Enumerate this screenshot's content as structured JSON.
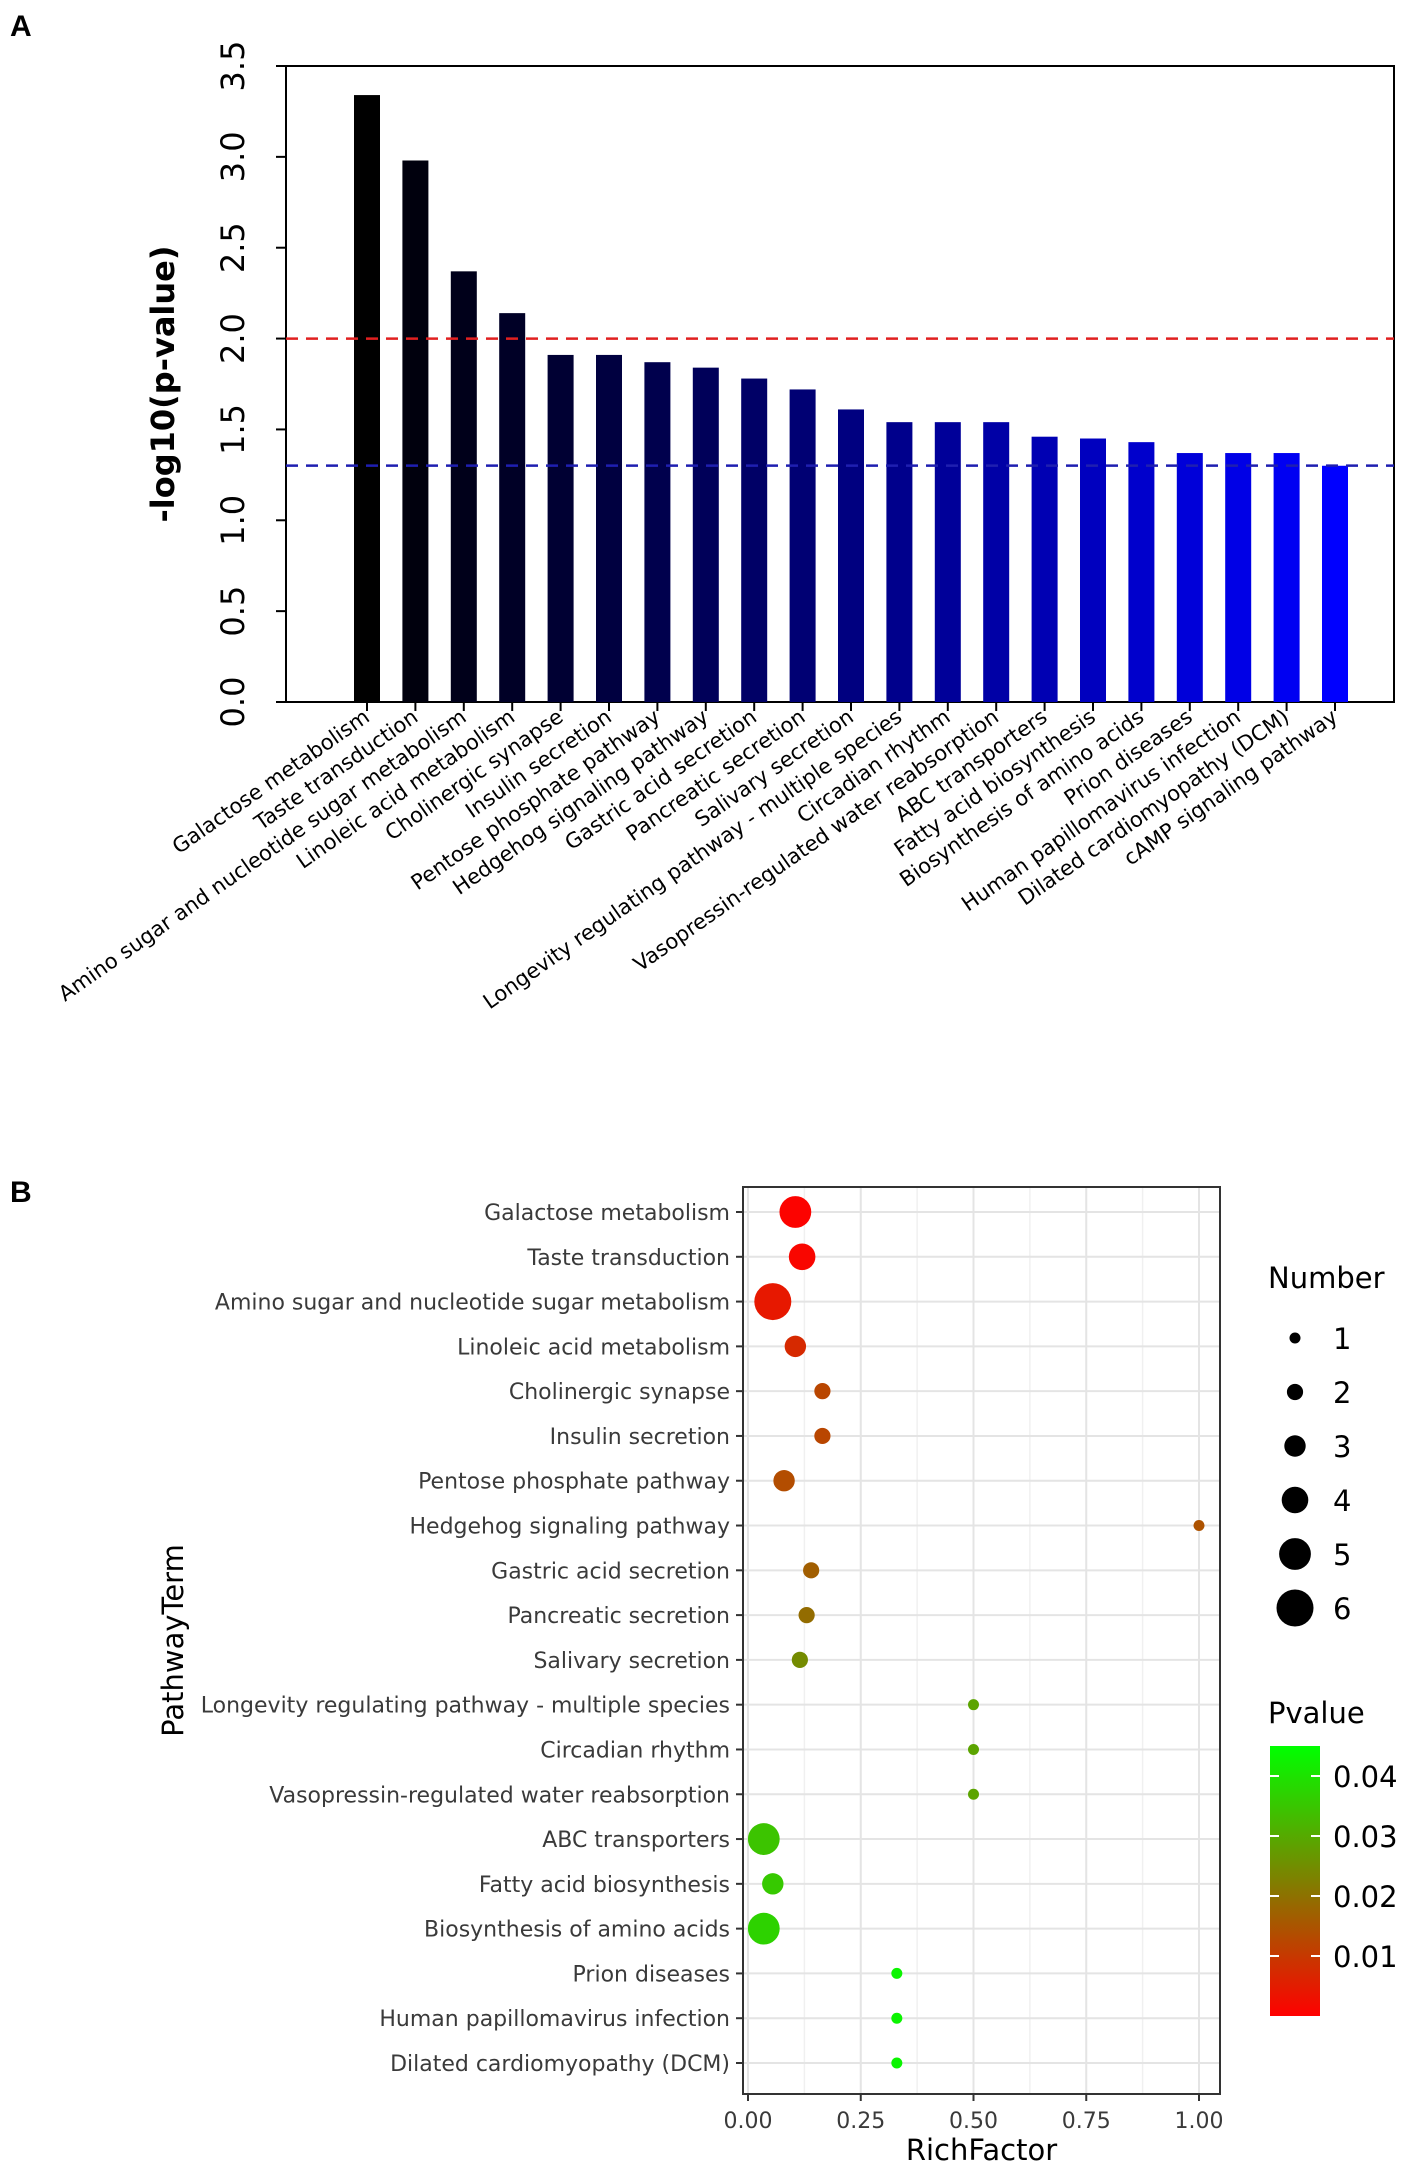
{
  "chart_data": [
    {
      "panel": "A",
      "type": "bar",
      "title": "",
      "xlabel": "",
      "ylabel": "-log10(p-value)",
      "ylim": [
        0,
        3.5
      ],
      "yticks": [
        "0.0",
        "0.5",
        "1.0",
        "1.5",
        "2.0",
        "2.5",
        "3.0",
        "3.5"
      ],
      "grid": false,
      "categories": [
        "Galactose metabolism",
        "Taste transduction",
        "Amino sugar and nucleotide sugar metabolism",
        "Linoleic acid metabolism",
        "Cholinergic synapse",
        "Insulin secretion",
        "Pentose phosphate pathway",
        "Hedgehog signaling pathway",
        "Gastric acid secretion",
        "Pancreatic secretion",
        "Salivary secretion",
        "Longevity regulating pathway - multiple species",
        "Circadian rhythm",
        "Vasopressin-regulated water reabsorption",
        "ABC transporters",
        "Fatty acid biosynthesis",
        "Biosynthesis of amino acids",
        "Prion diseases",
        "Human papillomavirus infection",
        "Dilated cardiomyopathy (DCM)",
        "cAMP signaling pathway"
      ],
      "values": [
        3.34,
        2.98,
        2.37,
        2.14,
        1.91,
        1.91,
        1.87,
        1.84,
        1.78,
        1.72,
        1.61,
        1.54,
        1.54,
        1.54,
        1.46,
        1.45,
        1.43,
        1.37,
        1.37,
        1.37,
        1.3
      ],
      "reference_lines": [
        {
          "value": 2.0,
          "color": "#e02020",
          "style": "dashed"
        },
        {
          "value": 1.301,
          "color": "#1f1fb0",
          "style": "dashed"
        }
      ],
      "colors": {
        "start": "#000000",
        "end": "#0000ff"
      }
    },
    {
      "panel": "B",
      "type": "scatter",
      "xlabel": "RichFactor",
      "ylabel": "PathwayTerm",
      "xlim": [
        0,
        1.0
      ],
      "xticks": [
        "0.00",
        "0.25",
        "0.50",
        "0.75",
        "1.00"
      ],
      "grid": true,
      "categories": [
        "Galactose metabolism",
        "Taste transduction",
        "Amino sugar and nucleotide sugar metabolism",
        "Linoleic acid metabolism",
        "Cholinergic synapse",
        "Insulin secretion",
        "Pentose phosphate pathway",
        "Hedgehog signaling pathway",
        "Gastric acid secretion",
        "Pancreatic secretion",
        "Salivary secretion",
        "Longevity regulating pathway - multiple species",
        "Circadian rhythm",
        "Vasopressin-regulated water reabsorption",
        "ABC transporters",
        "Fatty acid biosynthesis",
        "Biosynthesis of amino acids",
        "Prion diseases",
        "Human papillomavirus infection",
        "Dilated cardiomyopathy (DCM)"
      ],
      "points": [
        {
          "term": "Galactose metabolism",
          "richFactor": 0.105,
          "number": 5,
          "pvalue": 0.0005
        },
        {
          "term": "Taste transduction",
          "richFactor": 0.12,
          "number": 4,
          "pvalue": 0.001
        },
        {
          "term": "Amino sugar and nucleotide sugar metabolism",
          "richFactor": 0.055,
          "number": 6,
          "pvalue": 0.0043
        },
        {
          "term": "Linoleic acid metabolism",
          "richFactor": 0.105,
          "number": 3,
          "pvalue": 0.0072
        },
        {
          "term": "Cholinergic synapse",
          "richFactor": 0.165,
          "number": 2,
          "pvalue": 0.0123
        },
        {
          "term": "Insulin secretion",
          "richFactor": 0.165,
          "number": 2,
          "pvalue": 0.0123
        },
        {
          "term": "Pentose phosphate pathway",
          "richFactor": 0.08,
          "number": 3,
          "pvalue": 0.0135
        },
        {
          "term": "Hedgehog signaling pathway",
          "richFactor": 1.0,
          "number": 1,
          "pvalue": 0.0145
        },
        {
          "term": "Gastric acid secretion",
          "richFactor": 0.14,
          "number": 2,
          "pvalue": 0.0166
        },
        {
          "term": "Pancreatic secretion",
          "richFactor": 0.13,
          "number": 2,
          "pvalue": 0.019
        },
        {
          "term": "Salivary secretion",
          "richFactor": 0.115,
          "number": 2,
          "pvalue": 0.0245
        },
        {
          "term": "Longevity regulating pathway - multiple species",
          "richFactor": 0.5,
          "number": 1,
          "pvalue": 0.029
        },
        {
          "term": "Circadian rhythm",
          "richFactor": 0.5,
          "number": 1,
          "pvalue": 0.029
        },
        {
          "term": "Vasopressin-regulated water reabsorption",
          "richFactor": 0.5,
          "number": 1,
          "pvalue": 0.029
        },
        {
          "term": "ABC transporters",
          "richFactor": 0.035,
          "number": 5,
          "pvalue": 0.0345
        },
        {
          "term": "Fatty acid biosynthesis",
          "richFactor": 0.055,
          "number": 3,
          "pvalue": 0.0355
        },
        {
          "term": "Biosynthesis of amino acids",
          "richFactor": 0.035,
          "number": 5,
          "pvalue": 0.037
        },
        {
          "term": "Prion diseases",
          "richFactor": 0.33,
          "number": 1,
          "pvalue": 0.043
        },
        {
          "term": "Human papillomavirus infection",
          "richFactor": 0.33,
          "number": 1,
          "pvalue": 0.043
        },
        {
          "term": "Dilated cardiomyopathy (DCM)",
          "richFactor": 0.33,
          "number": 1,
          "pvalue": 0.043
        }
      ],
      "legend": {
        "size_title": "Number",
        "size_values": [
          "1",
          "2",
          "3",
          "4",
          "5",
          "6"
        ],
        "color_title": "Pvalue",
        "color_ticks": [
          "0.04",
          "0.03",
          "0.02",
          "0.01"
        ],
        "color_tick_values": [
          0.04,
          0.03,
          0.02,
          0.01
        ],
        "color_range": [
          0.0,
          0.045
        ],
        "color_low": "#ff0000",
        "color_high": "#00ff00"
      }
    }
  ],
  "panel_labels": [
    "A",
    "B"
  ]
}
